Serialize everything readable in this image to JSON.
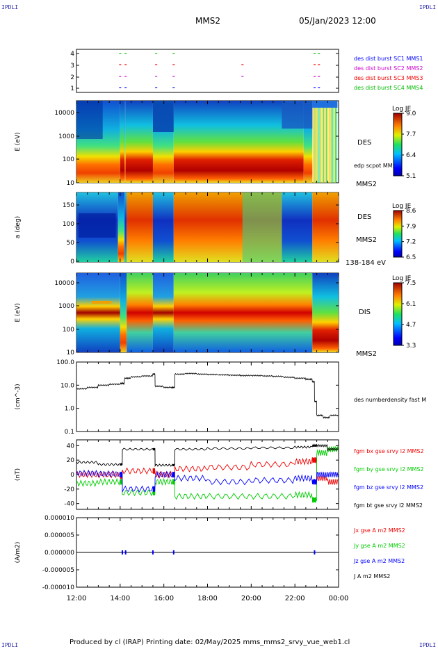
{
  "header": {
    "corner_left_top": "IPDLI",
    "corner_right_top": "IPDLI",
    "corner_left_bottom": "IPDLI",
    "corner_right_bottom": "IPDLI",
    "title": "MMS2",
    "date": "05/Jan/2023 12:00"
  },
  "footer": {
    "text": "Produced by cl (IRAP)   Printing date: 02/May/2025   mms_mms2_srvy_vue_web1.cl"
  },
  "colors": {
    "sc1": "#0000ff",
    "sc2": "#cc00cc",
    "sc3": "#ee0000",
    "sc4": "#00bb00",
    "bx": "#ee0000",
    "by": "#00cc00",
    "bz": "#0000ff",
    "bt": "#000000"
  },
  "chart_data": [
    {
      "type": "scatter",
      "panel": "burst",
      "ylim": [
        0.5,
        4.5
      ],
      "yticks": [
        "1",
        "2",
        "3",
        "4"
      ],
      "legend": [
        "des dist burst SC1 MMS1",
        "des dist burst SC2 MMS2",
        "des dist burst SC3 MMS3",
        "des dist burst SC4 MMS4"
      ],
      "series": [
        {
          "sc": 1,
          "times": [
            14.0,
            14.25,
            15.65,
            16.45,
            22.9,
            23.1
          ]
        },
        {
          "sc": 2,
          "times": [
            14.0,
            14.25,
            15.65,
            16.45,
            19.6,
            22.9,
            23.1
          ]
        },
        {
          "sc": 3,
          "times": [
            14.0,
            14.25,
            15.65,
            16.45,
            19.6,
            22.9,
            23.1
          ]
        },
        {
          "sc": 4,
          "times": [
            14.0,
            14.25,
            15.65,
            16.45,
            22.9,
            23.1
          ]
        }
      ]
    },
    {
      "type": "heatmap",
      "panel": "des-energy",
      "ylabel": "E (eV)",
      "yticks": [
        "10",
        "100",
        "1000",
        "10000"
      ],
      "label_right": "DES",
      "label_right2": "MMS2",
      "overlay": "edp scpot MMS2",
      "colorbar_title": "Log JE",
      "colorbar_ticks": [
        "9.0",
        "7.7",
        "6.4",
        "5.1"
      ]
    },
    {
      "type": "heatmap",
      "panel": "des-pitch",
      "ylabel": "a (deg)",
      "yticks": [
        "0",
        "50",
        "100",
        "150"
      ],
      "label_right": "DES",
      "label_right2": "MMS2",
      "energy_range": "138-184 eV",
      "colorbar_title": "Log JE",
      "colorbar_ticks": [
        "8.6",
        "7.9",
        "7.2",
        "6.5"
      ]
    },
    {
      "type": "heatmap",
      "panel": "dis-energy",
      "ylabel": "E (eV)",
      "yticks": [
        "10",
        "100",
        "1000",
        "10000"
      ],
      "label_right": "DIS",
      "label_right2": "MMS2",
      "colorbar_title": "Log JE",
      "colorbar_ticks": [
        "7.5",
        "6.1",
        "4.7",
        "3.3"
      ]
    },
    {
      "type": "line",
      "panel": "density",
      "ylabel": "(cm^-3)",
      "yticks": [
        "0.1",
        "1.0",
        "10.0",
        "100.0"
      ],
      "ylim": [
        0.1,
        100
      ],
      "legend": "des numberdensity fast M",
      "x": [
        12.0,
        12.5,
        13.0,
        13.5,
        14.0,
        14.2,
        14.5,
        15.0,
        15.5,
        15.6,
        16.0,
        16.4,
        16.5,
        17.0,
        17.5,
        18.0,
        18.5,
        19.0,
        19.5,
        20.0,
        20.5,
        21.0,
        21.5,
        22.0,
        22.5,
        22.8,
        22.9,
        23.0,
        23.3,
        23.6,
        24.0
      ],
      "y": [
        7,
        8,
        10,
        11,
        12,
        20,
        23,
        25,
        30,
        9,
        8,
        8,
        30,
        32,
        30,
        29,
        28,
        27,
        26,
        26,
        25,
        24,
        22,
        20,
        18,
        14,
        2,
        0.5,
        0.4,
        0.5,
        0.7
      ]
    },
    {
      "type": "line",
      "panel": "fgm",
      "ylabel": "(nT)",
      "yticks": [
        "-40",
        "-20",
        "0",
        "20",
        "40"
      ],
      "ylim": [
        -48,
        48
      ],
      "legend": [
        "fgm bx gse srvy l2 MMS2",
        "fgm by gse srvy l2 MMS2",
        "fgm bz gse srvy l2 MMS2",
        "fgm bt gse srvy l2 MMS2"
      ],
      "x": [
        12.0,
        13.0,
        14.0,
        14.1,
        15.5,
        15.6,
        16.4,
        16.5,
        18.0,
        20.0,
        22.0,
        22.8,
        23.0,
        23.5,
        24.0
      ],
      "series": [
        {
          "name": "bx",
          "values": [
            0,
            0,
            -2,
            5,
            5,
            0,
            0,
            8,
            10,
            14,
            18,
            20,
            -5,
            -10,
            -10
          ]
        },
        {
          "name": "by",
          "values": [
            -12,
            -10,
            -10,
            -25,
            -25,
            -10,
            -10,
            -30,
            -30,
            -30,
            -28,
            -35,
            30,
            35,
            30
          ]
        },
        {
          "name": "bz",
          "values": [
            2,
            1,
            0,
            -20,
            -20,
            0,
            0,
            -5,
            -10,
            -8,
            -5,
            -10,
            0,
            0,
            0
          ]
        },
        {
          "name": "bt",
          "values": [
            17,
            14,
            14,
            35,
            35,
            13,
            13,
            35,
            36,
            37,
            38,
            40,
            40,
            35,
            30
          ]
        }
      ]
    },
    {
      "type": "line",
      "panel": "current",
      "ylabel": "(A/m2)",
      "yticks": [
        "-0.000010",
        "-0.000005",
        "0.000000",
        "0.000005",
        "0.000010"
      ],
      "ylim": [
        -1e-05,
        1e-05
      ],
      "legend": [
        "Jx gse A m2 MMS2",
        "Jy gse A m2 MMS2",
        "Jz gse A m2 MMS2",
        "J A m2 MMS2"
      ],
      "x": [
        12,
        24
      ],
      "y": [
        0,
        0
      ]
    },
    {
      "type": "axis",
      "panel": "time",
      "xticks": [
        "12:00",
        "14:00",
        "16:00",
        "18:00",
        "20:00",
        "22:00",
        "00:00"
      ],
      "xlim": [
        12,
        24
      ]
    }
  ]
}
